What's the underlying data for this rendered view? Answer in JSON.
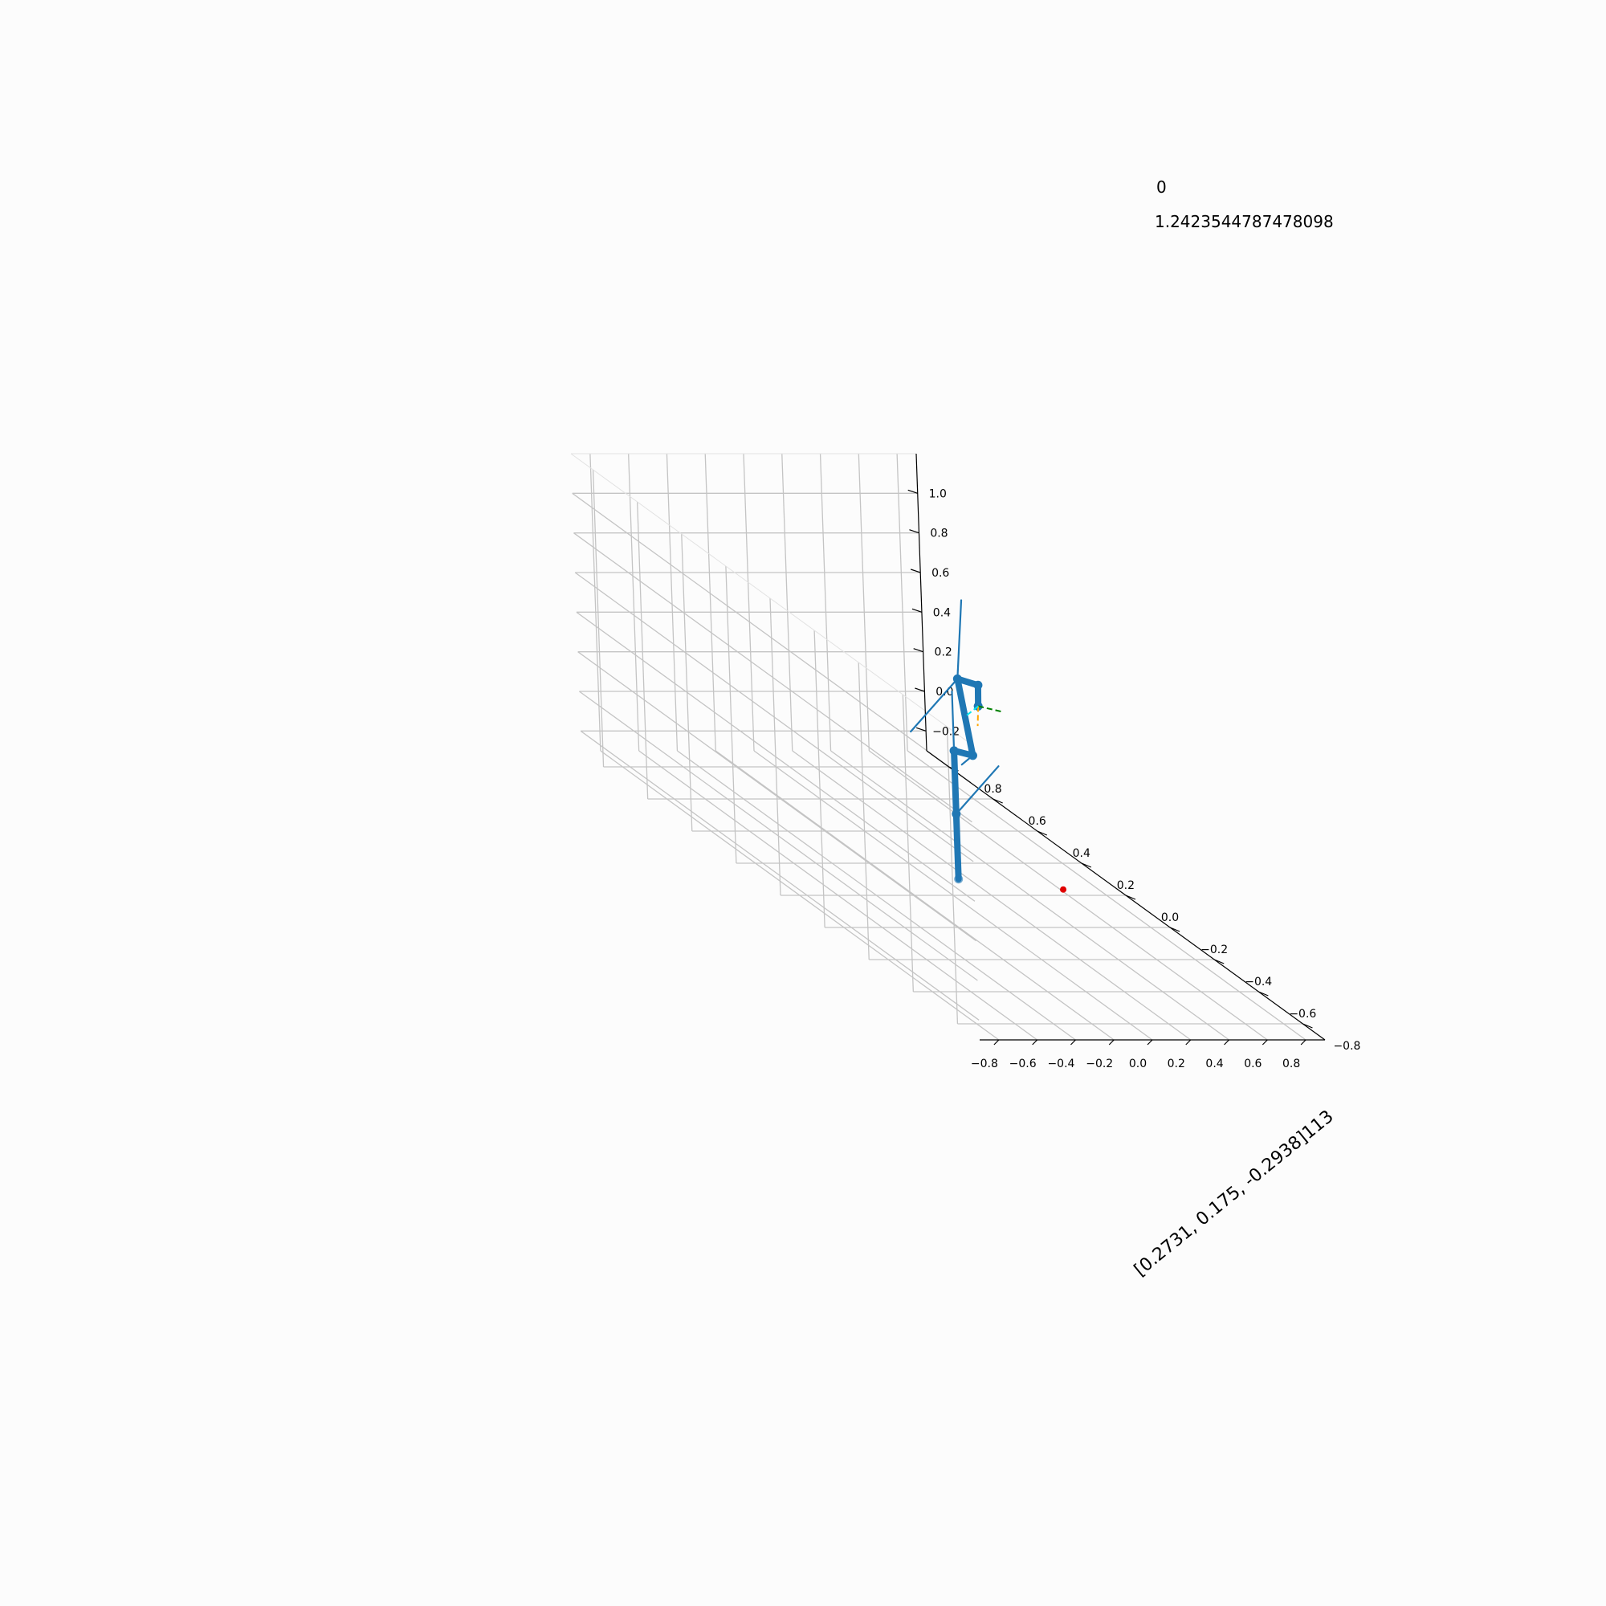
{
  "chart_data": {
    "type": "line3d",
    "annotations": [
      "0",
      "1.2423544787478098"
    ],
    "xlabel": "",
    "ylabel": "[0.2731, 0.175, -0.2938]113",
    "zlabel": "",
    "xlim": [
      -0.9,
      0.9
    ],
    "ylim": [
      -0.9,
      0.9
    ],
    "zlim": [
      -0.3,
      1.2
    ],
    "grid": true,
    "x_ticks": [
      "−0.8",
      "−0.6",
      "−0.4",
      "−0.2",
      "0.0",
      "0.2",
      "0.4",
      "0.6",
      "0.8"
    ],
    "y_ticks": [
      "−0.8",
      "−0.6",
      "−0.4",
      "−0.2",
      "0.0",
      "0.2",
      "0.4",
      "0.6",
      "0.8"
    ],
    "z_ticks": [
      "−0.2",
      "0.0",
      "0.2",
      "0.4",
      "0.6",
      "0.8",
      "1.0"
    ],
    "x_tick_values": [
      -0.8,
      -0.6,
      -0.4,
      -0.2,
      0.0,
      0.2,
      0.4,
      0.6,
      0.8
    ],
    "y_tick_values": [
      -0.8,
      -0.6,
      -0.4,
      -0.2,
      0.0,
      0.2,
      0.4,
      0.6,
      0.8
    ],
    "z_tick_values": [
      -0.2,
      0.0,
      0.2,
      0.4,
      0.6,
      0.8,
      1.0
    ],
    "skeleton_color": "#1f77b4",
    "skeleton_joints": [
      [
        0.031,
        0.0,
        -0.218
      ],
      [
        0.031,
        0.0,
        0.111
      ],
      [
        0.031,
        0.0,
        0.43
      ],
      [
        0.128,
        0.0,
        0.406
      ],
      [
        0.062,
        0.0,
        0.793
      ],
      [
        0.168,
        0.0,
        0.761
      ],
      [
        0.165,
        0.0,
        0.655
      ]
    ],
    "skeleton_segments": [
      {
        "points": [
          [
            0.031,
            0.0,
            -0.218
          ],
          [
            0.031,
            0.0,
            0.111
          ],
          [
            0.031,
            0.0,
            0.43
          ]
        ],
        "weight": "thick"
      },
      {
        "points": [
          [
            0.031,
            0.0,
            0.43
          ],
          [
            0.128,
            0.0,
            0.406
          ],
          [
            0.062,
            0.0,
            0.793
          ],
          [
            0.168,
            0.0,
            0.761
          ],
          [
            0.165,
            0.0,
            0.655
          ]
        ],
        "weight": "thick"
      },
      {
        "points": [
          [
            0.031,
            0.0,
            0.43
          ],
          [
            0.031,
            0.0,
            0.73
          ]
        ],
        "weight": "thin"
      },
      {
        "points": [
          [
            0.062,
            0.0,
            0.793
          ],
          [
            0.096,
            0.0,
            1.19
          ]
        ],
        "weight": "thin"
      },
      {
        "points": [
          [
            0.062,
            0.0,
            0.793
          ],
          [
            -0.191,
            0.0,
            0.527
          ]
        ],
        "weight": "thin"
      },
      {
        "points": [
          [
            0.031,
            0.0,
            0.111
          ],
          [
            0.26,
            0.0,
            0.352
          ]
        ],
        "weight": "thin"
      },
      {
        "points": [
          [
            0.128,
            0.0,
            0.406
          ],
          [
            0.069,
            0.0,
            0.36
          ]
        ],
        "weight": "thin"
      }
    ],
    "frame_origin": [
      0.165,
      0.0,
      0.655
    ],
    "frame_axes": [
      {
        "color": "#008000",
        "end": [
          0.293,
          0.0,
          0.626
        ]
      },
      {
        "color": "#ffa500",
        "end": [
          0.159,
          0.0,
          0.555
        ]
      },
      {
        "color": "#00e5ee",
        "end": [
          0.093,
          0.0,
          0.601
        ]
      }
    ],
    "target_point": {
      "color": "#e00000",
      "value": [
        0.477,
        -0.087,
        -0.2
      ]
    }
  }
}
